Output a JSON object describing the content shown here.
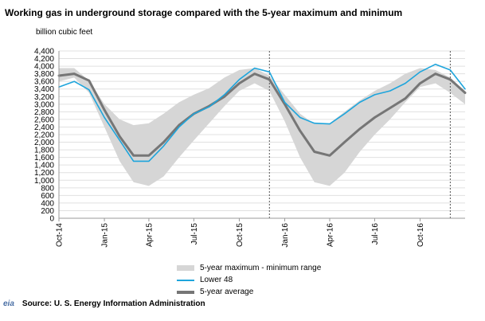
{
  "chart_data": {
    "type": "area+line",
    "title": "Working gas in underground storage compared with the  5-year maximum and minimum",
    "ylabel": "billion  cubic feet",
    "xlabel": "",
    "ylim": [
      0,
      4400
    ],
    "yticks": [
      "0",
      "200",
      "400",
      "600",
      "800",
      "1,000",
      "1,200",
      "1,400",
      "1,600",
      "1,800",
      "2,000",
      "2,200",
      "2,400",
      "2,600",
      "2,800",
      "3,000",
      "3,200",
      "3,400",
      "3,600",
      "3,800",
      "4,000",
      "4,200",
      "4,400"
    ],
    "xticks": [
      "Oct-14",
      "Jan-15",
      "Apr-15",
      "Jul-15",
      "Oct-15",
      "Jan-16",
      "Apr-16",
      "Jul-16",
      "Oct-16"
    ],
    "x_range": [
      "2014-10-01",
      "2016-12-31"
    ],
    "grid": true,
    "legend_position": "bottom",
    "vertical_markers": [
      "2015-12-01",
      "2016-12-01"
    ],
    "dates": [
      "2014-10-01",
      "2014-11-01",
      "2014-12-01",
      "2015-01-01",
      "2015-02-01",
      "2015-03-01",
      "2015-04-01",
      "2015-05-01",
      "2015-06-01",
      "2015-07-01",
      "2015-08-01",
      "2015-09-01",
      "2015-10-01",
      "2015-11-01",
      "2015-12-01",
      "2016-01-01",
      "2016-02-01",
      "2016-03-01",
      "2016-04-01",
      "2016-05-01",
      "2016-06-01",
      "2016-07-01",
      "2016-08-01",
      "2016-09-01",
      "2016-10-01",
      "2016-11-01",
      "2016-12-01",
      "2016-12-31"
    ],
    "series": [
      {
        "name": "5-year maximum - minimum range",
        "role": "range",
        "color": "#d6d6d6",
        "upper": [
          3950,
          3950,
          3620,
          3000,
          2600,
          2450,
          2500,
          2750,
          3050,
          3250,
          3420,
          3700,
          3900,
          3950,
          3750,
          3250,
          2750,
          2480,
          2500,
          2800,
          3100,
          3350,
          3550,
          3800,
          3950,
          3900,
          3700,
          3300
        ],
        "lower": [
          3600,
          3700,
          3300,
          2400,
          1500,
          950,
          850,
          1100,
          1600,
          2050,
          2500,
          2950,
          3350,
          3550,
          3350,
          2550,
          1600,
          950,
          850,
          1200,
          1750,
          2200,
          2600,
          3050,
          3450,
          3550,
          3300,
          3000
        ]
      },
      {
        "name": "Lower 48",
        "color": "#1ea5dc",
        "values": [
          3450,
          3600,
          3380,
          2650,
          2050,
          1500,
          1500,
          1900,
          2400,
          2750,
          2930,
          3250,
          3650,
          3950,
          3850,
          3050,
          2650,
          2500,
          2480,
          2750,
          3050,
          3250,
          3350,
          3550,
          3850,
          4050,
          3900,
          3400
        ]
      },
      {
        "name": "5-year average",
        "color": "#767676",
        "values": [
          3750,
          3800,
          3620,
          2850,
          2150,
          1650,
          1650,
          2000,
          2450,
          2750,
          2950,
          3200,
          3550,
          3800,
          3650,
          3000,
          2300,
          1750,
          1650,
          2000,
          2350,
          2650,
          2900,
          3150,
          3550,
          3800,
          3650,
          3300
        ]
      }
    ]
  },
  "legend": {
    "range": "5-year maximum - minimum range",
    "lower48": "Lower 48",
    "avg": "5-year average"
  },
  "source": {
    "logo": "eia",
    "text": "Source:  U. S. Energy Information Administration"
  },
  "colors": {
    "range": "#d6d6d6",
    "lower48": "#1ea5dc",
    "average": "#767676",
    "grid": "#e0e0e0"
  }
}
